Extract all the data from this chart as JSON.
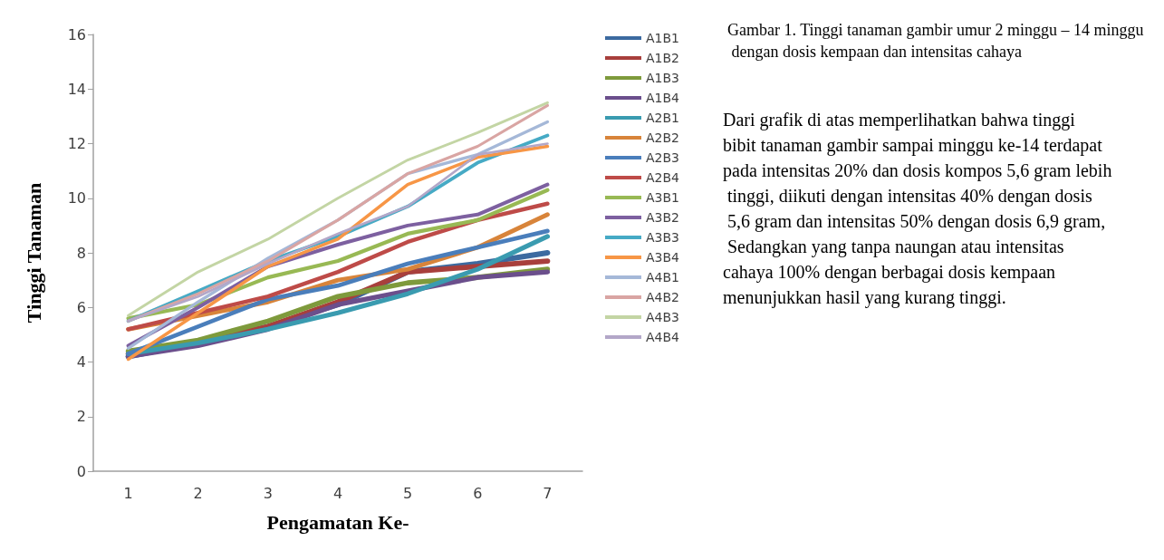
{
  "chart_data": {
    "type": "line",
    "title": "Gambar 1. Tinggi tanaman gambir umur 2 minggu – 14 minggu dengan dosis kempaan dan intensitas cahaya",
    "annotations": [
      "Dari grafik di atas memperlihatkan bahwa tinggi bibit tanaman gambir sampai minggu ke-14 terdapat pada intensitas 20% dan dosis kompos 5,6 gram lebih tinggi, diikuti dengan intensitas 40% dengan dosis 5,6 gram dan intensitas 50% dengan dosis 6,9 gram, Sedangkan yang tanpa naungan atau intensitas cahaya 100% dengan berbagai dosis kempaan menunjukkan hasil yang kurang tinggi."
    ],
    "xlabel": "Pengamatan Ke-",
    "ylabel": "Tinggi Tanaman",
    "categories": [
      "1",
      "2",
      "3",
      "4",
      "5",
      "6",
      "7"
    ],
    "ylim": [
      0,
      16
    ],
    "yticks": [
      0,
      2,
      4,
      6,
      8,
      10,
      12,
      14,
      16
    ],
    "grid": false,
    "legend": "right",
    "marker": "none",
    "line_style": "solid",
    "series": [
      {
        "name": "A1B1",
        "color": "#3c6aa0",
        "values": [
          4.2,
          4.7,
          5.3,
          6.1,
          7.3,
          7.6,
          8.0
        ]
      },
      {
        "name": "A1B2",
        "color": "#a83f3c",
        "values": [
          4.3,
          4.7,
          5.3,
          6.2,
          7.3,
          7.5,
          7.7
        ]
      },
      {
        "name": "A1B3",
        "color": "#7e9a3c",
        "values": [
          4.4,
          4.8,
          5.5,
          6.4,
          6.9,
          7.1,
          7.4
        ]
      },
      {
        "name": "A1B4",
        "color": "#6b4f8c",
        "values": [
          4.2,
          4.6,
          5.2,
          6.1,
          6.6,
          7.1,
          7.3
        ]
      },
      {
        "name": "A2B1",
        "color": "#3a9bb0",
        "values": [
          4.3,
          4.7,
          5.2,
          5.8,
          6.5,
          7.4,
          8.6
        ]
      },
      {
        "name": "A2B2",
        "color": "#d8843a",
        "values": [
          5.2,
          5.7,
          6.2,
          7.0,
          7.4,
          8.2,
          9.4
        ]
      },
      {
        "name": "A2B3",
        "color": "#4a7ebb",
        "values": [
          4.3,
          5.3,
          6.3,
          6.8,
          7.6,
          8.2,
          8.8
        ]
      },
      {
        "name": "A2B4",
        "color": "#be4b48",
        "values": [
          5.2,
          5.8,
          6.4,
          7.3,
          8.4,
          9.2,
          9.8
        ]
      },
      {
        "name": "A3B1",
        "color": "#98b954",
        "values": [
          5.6,
          6.1,
          7.1,
          7.7,
          8.7,
          9.2,
          10.3
        ]
      },
      {
        "name": "A3B2",
        "color": "#7d60a0",
        "values": [
          4.6,
          6.0,
          7.5,
          8.3,
          9.0,
          9.4,
          10.5
        ]
      },
      {
        "name": "A3B3",
        "color": "#46aac5",
        "values": [
          5.5,
          6.6,
          7.7,
          8.6,
          9.7,
          11.3,
          12.3
        ]
      },
      {
        "name": "A3B4",
        "color": "#f79646",
        "values": [
          4.1,
          5.8,
          7.5,
          8.5,
          10.5,
          11.5,
          11.9
        ]
      },
      {
        "name": "A4B1",
        "color": "#a5b8d8",
        "values": [
          4.5,
          6.2,
          7.8,
          9.2,
          10.9,
          11.6,
          12.8
        ]
      },
      {
        "name": "A4B2",
        "color": "#d9a5a3",
        "values": [
          5.5,
          6.5,
          7.7,
          9.2,
          10.9,
          11.9,
          13.4
        ]
      },
      {
        "name": "A4B3",
        "color": "#c3d5a4",
        "values": [
          5.7,
          7.3,
          8.5,
          10.0,
          11.4,
          12.4,
          13.5
        ]
      },
      {
        "name": "A4B4",
        "color": "#b3a7c8",
        "values": [
          5.5,
          6.4,
          7.6,
          8.7,
          9.7,
          11.6,
          12.0
        ]
      }
    ]
  }
}
